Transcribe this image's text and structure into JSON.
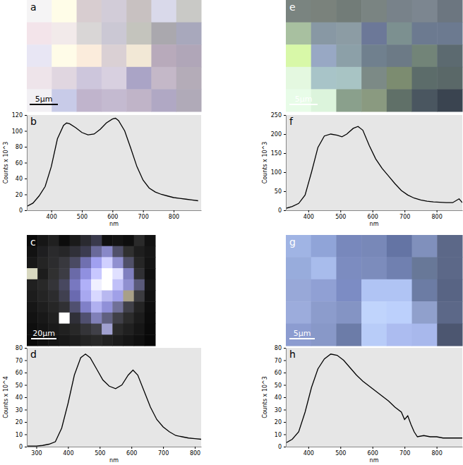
{
  "chart_data": [
    {
      "type": "image",
      "title": "a",
      "annotation": "5μm",
      "cells": [
        [
          "#f5f4f5",
          "#fffde8",
          "#d8cdd0",
          "#d2ccd8",
          "#c8c1c1",
          "#d9d9ea",
          "#c9c9c6"
        ],
        [
          "#f3e4ea",
          "#f2eaea",
          "#d9d6d6",
          "#cbc8d4",
          "#c4c4bd",
          "#aaa8ae",
          "#a8a8bc"
        ],
        [
          "#e8e6f4",
          "#fffce8",
          "#fbecdc",
          "#dad0d4",
          "#f2e8d6",
          "#b8aabb",
          "#b0a6b8"
        ],
        [
          "#eee4ea",
          "#e0d6e0",
          "#cdc6dc",
          "#d8d0e0",
          "#aaa4c6",
          "#c4b8c8",
          "#b4acb8"
        ],
        [
          "#f2f0f4",
          "#c8cbe8",
          "#c0b4cc",
          "#c4bad0",
          "#c0b4c8",
          "#b0a8c4",
          "#b0aab8"
        ]
      ]
    },
    {
      "type": "line",
      "title": "b",
      "x_label": "nm",
      "y_label": "Counts x 10^3",
      "color": "#000000",
      "x": [
        320,
        340,
        360,
        380,
        400,
        420,
        440,
        450,
        460,
        480,
        500,
        520,
        540,
        560,
        580,
        600,
        610,
        620,
        640,
        660,
        680,
        700,
        720,
        740,
        760,
        780,
        800,
        820,
        840,
        860,
        880
      ],
      "values": [
        5,
        9,
        18,
        30,
        55,
        90,
        107,
        110,
        109,
        104,
        98,
        95,
        96,
        102,
        110,
        115,
        116,
        113,
        100,
        78,
        55,
        38,
        28,
        23,
        20,
        18,
        16,
        15,
        14,
        13,
        12
      ],
      "xlim": [
        320,
        890
      ],
      "ylim": [
        0,
        120
      ],
      "xticks": [
        400,
        500,
        600,
        700,
        800
      ],
      "yticks": [
        0,
        20,
        40,
        60,
        80,
        100,
        120
      ]
    },
    {
      "type": "image",
      "title": "c",
      "annotation": "20μm",
      "cells": [
        [
          "#0a0a0a",
          "#161616",
          "#202020",
          "#0c0c0c",
          "#1a1a1a",
          "#2a2a30",
          "#3a3a4c",
          "#101010",
          "#141414",
          "#0e0e0e",
          "#2a2a2a",
          "#121212"
        ],
        [
          "#121212",
          "#1e1e20",
          "#2a2a2c",
          "#262628",
          "#303038",
          "#3c3c50",
          "#6a6a9a",
          "#8888c8",
          "#50506a",
          "#303030",
          "#1e1e1e",
          "#161616"
        ],
        [
          "#181818",
          "#242424",
          "#2c2c2e",
          "#38383e",
          "#4a4a62",
          "#7070b0",
          "#a0a0f0",
          "#d0d0ff",
          "#9090d0",
          "#505068",
          "#262626",
          "#141414"
        ],
        [
          "#d8d8c0",
          "#1c1c1c",
          "#303030",
          "#3c3c44",
          "#6a6aa8",
          "#9090e0",
          "#c8c8ff",
          "#ffffff",
          "#e0e0ff",
          "#8080c0",
          "#303034",
          "#101010"
        ],
        [
          "#202020",
          "#282828",
          "#343438",
          "#484860",
          "#7878c0",
          "#b0b0f8",
          "#f0f0ff",
          "#ffffff",
          "#c0c0f8",
          "#9090d0",
          "#5a5a7a",
          "#161616"
        ],
        [
          "#1c1c1c",
          "#242424",
          "#2c2c2e",
          "#404050",
          "#6a6ab0",
          "#a8a8f0",
          "#d8d8ff",
          "#b8b8f0",
          "#a0a0e8",
          "#a8a088",
          "#3c3c40",
          "#121212"
        ],
        [
          "#161616",
          "#1e1e1e",
          "#262626",
          "#303034",
          "#505070",
          "#8080c8",
          "#b0b0f0",
          "#9090d8",
          "#707098",
          "#404048",
          "#242424",
          "#0e0e0e"
        ],
        [
          "#121212",
          "#181818",
          "#202020",
          "#ffffff",
          "#303038",
          "#505070",
          "#8080b8",
          "#606080",
          "#404048",
          "#2c2c2c",
          "#1c1c1c",
          "#0c0c0c"
        ],
        [
          "#0e0e0e",
          "#141414",
          "#1a1a1a",
          "#202020",
          "#282828",
          "#343438",
          "#404048",
          "#a0a0d0",
          "#2a2a2a",
          "#202020",
          "#161616",
          "#0a0a0a"
        ],
        [
          "#0a0a0a",
          "#101010",
          "#141414",
          "#181818",
          "#1e1e1e",
          "#242424",
          "#282828",
          "#222222",
          "#1c1c1c",
          "#161616",
          "#101010",
          "#080808"
        ]
      ]
    },
    {
      "type": "line",
      "title": "d",
      "x_label": "nm",
      "y_label": "Counts x 10^4",
      "color": "#000000",
      "x": [
        270,
        300,
        320,
        340,
        360,
        380,
        400,
        420,
        440,
        455,
        470,
        490,
        510,
        530,
        550,
        570,
        590,
        605,
        620,
        640,
        660,
        680,
        700,
        720,
        740,
        760,
        780,
        800,
        820
      ],
      "values": [
        0.5,
        0.5,
        1,
        2,
        4,
        15,
        35,
        58,
        72,
        75,
        72,
        63,
        54,
        49,
        47,
        50,
        58,
        62,
        58,
        45,
        32,
        22,
        16,
        12,
        9,
        8,
        7,
        6.5,
        6
      ],
      "xlim": [
        270,
        820
      ],
      "ylim": [
        0,
        80
      ],
      "xticks": [
        300,
        400,
        500,
        600,
        700,
        800
      ],
      "yticks": [
        0,
        10,
        20,
        30,
        40,
        50,
        60,
        70,
        80
      ]
    },
    {
      "type": "image",
      "title": "e",
      "annotation": "5μm",
      "cells": [
        [
          "#7a8480",
          "#7a827c",
          "#727c78",
          "#7a8482",
          "#78828a",
          "#7c8690",
          "#6c7680"
        ],
        [
          "#a8c0a0",
          "#8898a4",
          "#8c9ca4",
          "#6c7898",
          "#7c9090",
          "#6c7a90",
          "#6c7a90"
        ],
        [
          "#d8f8a8",
          "#98a8c4",
          "#8ca0a8",
          "#70808e",
          "#6c7a86",
          "#728478",
          "#5c6a70"
        ],
        [
          "#e4f8e0",
          "#a8c4c8",
          "#a8c4c4",
          "#7c8a86",
          "#7c8c70",
          "#5c6c6a",
          "#5a6868"
        ],
        [
          "#e8fce8",
          "#dcf4dc",
          "#8aa08c",
          "#8a9a80",
          "#607068",
          "#4a5660",
          "#3a4450"
        ]
      ]
    },
    {
      "type": "line",
      "title": "f",
      "x_label": "nm",
      "y_label": "Counts x 10^3",
      "color": "#000000",
      "x": [
        330,
        350,
        370,
        390,
        410,
        430,
        450,
        470,
        490,
        505,
        520,
        540,
        555,
        570,
        590,
        610,
        630,
        650,
        670,
        690,
        710,
        730,
        750,
        770,
        790,
        810,
        830,
        850,
        870,
        880
      ],
      "values": [
        5,
        10,
        18,
        40,
        100,
        165,
        195,
        200,
        197,
        193,
        200,
        215,
        220,
        210,
        170,
        135,
        110,
        90,
        70,
        52,
        40,
        32,
        27,
        24,
        22,
        21,
        20,
        20,
        30,
        20
      ],
      "xlim": [
        330,
        880
      ],
      "ylim": [
        0,
        250
      ],
      "xticks": [
        400,
        500,
        600,
        700,
        800
      ],
      "yticks": [
        0,
        50,
        100,
        150,
        200,
        250
      ]
    },
    {
      "type": "image",
      "title": "g",
      "annotation": "5μm",
      "cells": [
        [
          "#a0b4e4",
          "#90a4d8",
          "#7888bc",
          "#7888b8",
          "#6474a4",
          "#8090bc",
          "#5c6888"
        ],
        [
          "#98acdc",
          "#a8bcec",
          "#7c8cc0",
          "#7c8cbc",
          "#7080b0",
          "#687898",
          "#5c6888"
        ],
        [
          "#98a8d8",
          "#90a0d4",
          "#7c8cc4",
          "#b0c4f4",
          "#b0c4f4",
          "#6c7ca4",
          "#586484"
        ],
        [
          "#9cacdc",
          "#8c9ccc",
          "#8494c4",
          "#c0d4fc",
          "#bcd0fc",
          "#90a0cc",
          "#5c6888"
        ],
        [
          "#8c9cd0",
          "#8898c8",
          "#6c7ca8",
          "#b8ccf8",
          "#acbcf0",
          "#a8b8ec",
          "#4c5670"
        ]
      ]
    },
    {
      "type": "line",
      "title": "h",
      "x_label": "nm",
      "y_label": "Counts x 10^3",
      "color": "#000000",
      "x": [
        330,
        350,
        370,
        390,
        410,
        430,
        450,
        470,
        490,
        510,
        530,
        550,
        570,
        590,
        610,
        630,
        650,
        670,
        690,
        700,
        710,
        720,
        730,
        740,
        760,
        780,
        800,
        820,
        840,
        860,
        880
      ],
      "values": [
        3,
        6,
        12,
        28,
        48,
        63,
        71,
        75,
        74,
        70,
        64,
        58,
        53,
        49,
        45,
        41,
        37,
        32,
        28,
        22,
        25,
        18,
        12,
        8,
        9,
        8,
        8,
        7,
        7,
        7,
        7
      ],
      "xlim": [
        330,
        880
      ],
      "ylim": [
        0,
        80
      ],
      "xticks": [
        400,
        500,
        600,
        700,
        800
      ],
      "yticks": [
        0,
        10,
        20,
        30,
        40,
        50,
        60,
        70,
        80
      ]
    }
  ]
}
